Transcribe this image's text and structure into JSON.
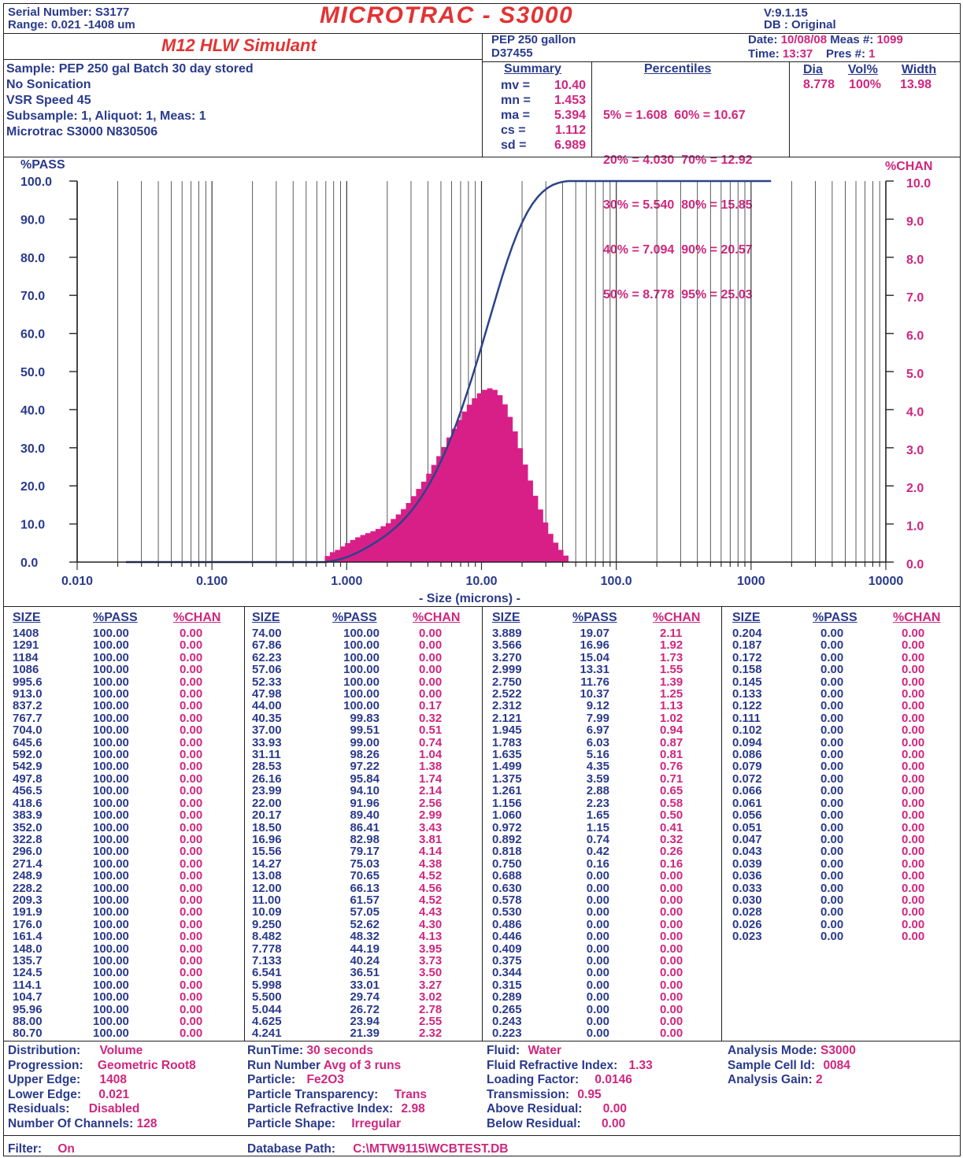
{
  "header": {
    "serial_label": "Serial Number:",
    "serial": "S3177",
    "range_label": "Range:",
    "range": "0.021 -1408  um",
    "title": "MICROTRAC - S3000",
    "version_label": "V:",
    "version": "9.1.15",
    "db_label": "DB :",
    "db": "Original",
    "sample_title": "M12 HLW Simulant",
    "id_line1": "PEP 250 gallon",
    "id_line2": "D37455",
    "date_label": "Date:",
    "date": "10/08/08",
    "meas_label": "Meas #:",
    "meas": "1099",
    "time_label": "Time:",
    "time": "13:37",
    "pres_label": "Pres #:",
    "pres": "1"
  },
  "sample_info": [
    "Sample: PEP 250 gal Batch 30 day stored",
    "No Sonication",
    "VSR Speed 45",
    "Subsample: 1, Aliquot: 1, Meas: 1",
    "Microtrac S3000 N830506"
  ],
  "summary": {
    "title": "Summary",
    "rows": [
      {
        "k": "mv  =",
        "v": "10.40"
      },
      {
        "k": "mn  =",
        "v": "1.453"
      },
      {
        "k": "ma  =",
        "v": "5.394"
      },
      {
        "k": "cs   =",
        "v": "1.112"
      },
      {
        "k": "sd   =",
        "v": "6.989"
      }
    ]
  },
  "percentiles": {
    "title": "Percentiles",
    "rows": [
      "5% = 1.608  60% = 10.67",
      "20% = 4.030  70% = 12.92",
      "30% = 5.540  80% = 15.85",
      "40% = 7.094  90% = 20.57",
      "50% = 8.778  95% = 25.03"
    ]
  },
  "peaks": {
    "headers": [
      "Dia",
      "Vol%",
      "Width"
    ],
    "values": [
      "8.778",
      "100%",
      "13.98"
    ]
  },
  "chart_data": {
    "type": "bar",
    "ylabel_left": "%PASS",
    "ylabel_right": "%CHAN",
    "xlabel": "- Size (microns) -",
    "x_scale": "log",
    "xlim": [
      0.01,
      10000
    ],
    "ylim_left": [
      0,
      100
    ],
    "ylim_right": [
      0,
      10
    ],
    "x_ticks": [
      "0.010",
      "0.100",
      "1.000",
      "10.00",
      "100.0",
      "1000",
      "10000"
    ],
    "y_ticks_left": [
      "0.0",
      "10.0",
      "20.0",
      "30.0",
      "40.0",
      "50.0",
      "60.0",
      "70.0",
      "80.0",
      "90.0",
      "100.0"
    ],
    "y_ticks_right": [
      "0.0",
      "1.0",
      "2.0",
      "3.0",
      "4.0",
      "5.0",
      "6.0",
      "7.0",
      "8.0",
      "9.0",
      "10.0"
    ],
    "grid": true,
    "size": [
      1408,
      1291,
      1184,
      1086,
      995.6,
      913.0,
      837.2,
      767.7,
      704.0,
      645.6,
      592.0,
      542.9,
      497.8,
      456.5,
      418.6,
      383.9,
      352.0,
      322.8,
      296.0,
      271.4,
      248.9,
      228.2,
      209.3,
      191.9,
      176.0,
      161.4,
      148.0,
      135.7,
      124.5,
      114.1,
      104.7,
      95.96,
      88.0,
      80.7,
      74.0,
      67.86,
      62.23,
      57.06,
      52.33,
      47.98,
      44.0,
      40.35,
      37.0,
      33.93,
      31.11,
      28.53,
      26.16,
      23.99,
      22.0,
      20.17,
      18.5,
      16.96,
      15.56,
      14.27,
      13.08,
      12.0,
      11.0,
      10.09,
      9.25,
      8.482,
      7.778,
      7.133,
      6.541,
      5.998,
      5.5,
      5.044,
      4.625,
      4.241,
      3.889,
      3.566,
      3.27,
      2.999,
      2.75,
      2.522,
      2.312,
      2.121,
      1.945,
      1.783,
      1.635,
      1.499,
      1.375,
      1.261,
      1.156,
      1.06,
      0.972,
      0.892,
      0.818,
      0.75,
      0.688,
      0.63,
      0.578,
      0.53,
      0.486,
      0.446,
      0.409,
      0.375,
      0.344,
      0.315,
      0.289,
      0.265,
      0.243,
      0.223,
      0.204,
      0.187,
      0.172,
      0.158,
      0.145,
      0.133,
      0.122,
      0.111,
      0.102,
      0.094,
      0.086,
      0.079,
      0.072,
      0.066,
      0.061,
      0.056,
      0.051,
      0.047,
      0.043,
      0.039,
      0.036,
      0.033,
      0.03,
      0.028,
      0.026,
      0.023
    ],
    "pass": [
      100,
      100,
      100,
      100,
      100,
      100,
      100,
      100,
      100,
      100,
      100,
      100,
      100,
      100,
      100,
      100,
      100,
      100,
      100,
      100,
      100,
      100,
      100,
      100,
      100,
      100,
      100,
      100,
      100,
      100,
      100,
      100,
      100,
      100,
      100,
      100,
      100,
      100,
      100,
      100,
      100,
      99.83,
      99.51,
      99.0,
      98.26,
      97.22,
      95.84,
      94.1,
      91.96,
      89.4,
      86.41,
      82.98,
      79.17,
      75.03,
      70.65,
      66.13,
      61.57,
      57.05,
      52.62,
      48.32,
      44.19,
      40.24,
      36.51,
      33.01,
      29.74,
      26.72,
      23.94,
      21.39,
      19.07,
      16.96,
      15.04,
      13.31,
      11.76,
      10.37,
      9.12,
      7.99,
      6.97,
      6.03,
      5.16,
      4.35,
      3.59,
      2.88,
      2.23,
      1.65,
      1.15,
      0.74,
      0.42,
      0.16,
      0,
      0,
      0,
      0,
      0,
      0,
      0,
      0,
      0,
      0,
      0,
      0,
      0,
      0,
      0,
      0,
      0,
      0,
      0,
      0,
      0,
      0,
      0,
      0,
      0,
      0,
      0,
      0,
      0,
      0,
      0,
      0,
      0,
      0,
      0,
      0,
      0,
      0,
      0,
      0
    ],
    "chan": [
      0,
      0,
      0,
      0,
      0,
      0,
      0,
      0,
      0,
      0,
      0,
      0,
      0,
      0,
      0,
      0,
      0,
      0,
      0,
      0,
      0,
      0,
      0,
      0,
      0,
      0,
      0,
      0,
      0,
      0,
      0,
      0,
      0,
      0,
      0,
      0,
      0,
      0,
      0,
      0,
      0.17,
      0.32,
      0.51,
      0.74,
      1.04,
      1.38,
      1.74,
      2.14,
      2.56,
      2.99,
      3.43,
      3.81,
      4.14,
      4.38,
      4.52,
      4.56,
      4.52,
      4.43,
      4.3,
      4.13,
      3.95,
      3.73,
      3.5,
      3.27,
      3.02,
      2.78,
      2.55,
      2.32,
      2.11,
      1.92,
      1.73,
      1.55,
      1.39,
      1.25,
      1.13,
      1.02,
      0.94,
      0.87,
      0.81,
      0.76,
      0.71,
      0.65,
      0.58,
      0.5,
      0.41,
      0.32,
      0.26,
      0.16,
      0,
      0,
      0,
      0,
      0,
      0,
      0,
      0,
      0,
      0,
      0,
      0,
      0,
      0,
      0,
      0,
      0,
      0,
      0,
      0,
      0,
      0,
      0,
      0,
      0,
      0,
      0,
      0,
      0,
      0,
      0,
      0,
      0,
      0,
      0,
      0,
      0,
      0,
      0,
      0
    ],
    "colors": {
      "pass_line": "#2c4488",
      "chan_bars": "#d81f88"
    }
  },
  "table": {
    "headers": [
      "SIZE",
      "%PASS",
      "%CHAN"
    ],
    "col1": {
      "size": "1408\n1291\n1184\n1086\n995.6\n913.0\n837.2\n767.7\n704.0\n645.6\n592.0\n542.9\n497.8\n456.5\n418.6\n383.9\n352.0\n322.8\n296.0\n271.4\n248.9\n228.2\n209.3\n191.9\n176.0\n161.4\n148.0\n135.7\n124.5\n114.1\n104.7\n95.96\n88.00\n80.70",
      "pass": "100.00\n100.00\n100.00\n100.00\n100.00\n100.00\n100.00\n100.00\n100.00\n100.00\n100.00\n100.00\n100.00\n100.00\n100.00\n100.00\n100.00\n100.00\n100.00\n100.00\n100.00\n100.00\n100.00\n100.00\n100.00\n100.00\n100.00\n100.00\n100.00\n100.00\n100.00\n100.00\n100.00\n100.00",
      "chan": "0.00\n0.00\n0.00\n0.00\n0.00\n0.00\n0.00\n0.00\n0.00\n0.00\n0.00\n0.00\n0.00\n0.00\n0.00\n0.00\n0.00\n0.00\n0.00\n0.00\n0.00\n0.00\n0.00\n0.00\n0.00\n0.00\n0.00\n0.00\n0.00\n0.00\n0.00\n0.00\n0.00\n0.00"
    },
    "col2": {
      "size": "74.00\n67.86\n62.23\n57.06\n52.33\n47.98\n44.00\n40.35\n37.00\n33.93\n31.11\n28.53\n26.16\n23.99\n22.00\n20.17\n18.50\n16.96\n15.56\n14.27\n13.08\n12.00\n11.00\n10.09\n9.250\n8.482\n7.778\n7.133\n6.541\n5.998\n5.500\n5.044\n4.625\n4.241",
      "pass": "100.00\n100.00\n100.00\n100.00\n100.00\n100.00\n100.00\n99.83\n99.51\n99.00\n98.26\n97.22\n95.84\n94.10\n91.96\n89.40\n86.41\n82.98\n79.17\n75.03\n70.65\n66.13\n61.57\n57.05\n52.62\n48.32\n44.19\n40.24\n36.51\n33.01\n29.74\n26.72\n23.94\n21.39",
      "chan": "0.00\n0.00\n0.00\n0.00\n0.00\n0.00\n0.17\n0.32\n0.51\n0.74\n1.04\n1.38\n1.74\n2.14\n2.56\n2.99\n3.43\n3.81\n4.14\n4.38\n4.52\n4.56\n4.52\n4.43\n4.30\n4.13\n3.95\n3.73\n3.50\n3.27\n3.02\n2.78\n2.55\n2.32"
    },
    "col3": {
      "size": "3.889\n3.566\n3.270\n2.999\n2.750\n2.522\n2.312\n2.121\n1.945\n1.783\n1.635\n1.499\n1.375\n1.261\n1.156\n1.060\n0.972\n0.892\n0.818\n0.750\n0.688\n0.630\n0.578\n0.530\n0.486\n0.446\n0.409\n0.375\n0.344\n0.315\n0.289\n0.265\n0.243\n0.223",
      "pass": "19.07\n16.96\n15.04\n13.31\n11.76\n10.37\n9.12\n7.99\n6.97\n6.03\n5.16\n4.35\n3.59\n2.88\n2.23\n1.65\n1.15\n0.74\n0.42\n0.16\n0.00\n0.00\n0.00\n0.00\n0.00\n0.00\n0.00\n0.00\n0.00\n0.00\n0.00\n0.00\n0.00\n0.00",
      "chan": "2.11\n1.92\n1.73\n1.55\n1.39\n1.25\n1.13\n1.02\n0.94\n0.87\n0.81\n0.76\n0.71\n0.65\n0.58\n0.50\n0.41\n0.32\n0.26\n0.16\n0.00\n0.00\n0.00\n0.00\n0.00\n0.00\n0.00\n0.00\n0.00\n0.00\n0.00\n0.00\n0.00\n0.00"
    },
    "col4": {
      "size": "0.204\n0.187\n0.172\n0.158\n0.145\n0.133\n0.122\n0.111\n0.102\n0.094\n0.086\n0.079\n0.072\n0.066\n0.061\n0.056\n0.051\n0.047\n0.043\n0.039\n0.036\n0.033\n0.030\n0.028\n0.026\n0.023",
      "pass": "0.00\n0.00\n0.00\n0.00\n0.00\n0.00\n0.00\n0.00\n0.00\n0.00\n0.00\n0.00\n0.00\n0.00\n0.00\n0.00\n0.00\n0.00\n0.00\n0.00\n0.00\n0.00\n0.00\n0.00\n0.00\n0.00",
      "chan": "0.00\n0.00\n0.00\n0.00\n0.00\n0.00\n0.00\n0.00\n0.00\n0.00\n0.00\n0.00\n0.00\n0.00\n0.00\n0.00\n0.00\n0.00\n0.00\n0.00\n0.00\n0.00\n0.00\n0.00\n0.00\n0.00"
    }
  },
  "footer": {
    "c1": [
      {
        "k": "Distribution:",
        "v": "Volume"
      },
      {
        "k": "Progression:",
        "v": "Geometric Root8"
      },
      {
        "k": "Upper Edge:",
        "v": "1408"
      },
      {
        "k": "Lower Edge:",
        "v": "0.021"
      },
      {
        "k": "Residuals:",
        "v": "Disabled"
      },
      {
        "k": "Number Of Channels:",
        "v": "128"
      }
    ],
    "c2": [
      {
        "k": "RunTime:",
        "v": "30  seconds"
      },
      {
        "k": "Run Number",
        "v": "Avg of  3  runs"
      },
      {
        "k": "Particle:",
        "v": "Fe2O3"
      },
      {
        "k": "Particle Transparency:",
        "v": "Trans"
      },
      {
        "k": "Particle Refractive Index:",
        "v": "2.98"
      },
      {
        "k": "Particle Shape:",
        "v": "Irregular"
      }
    ],
    "c3": [
      {
        "k": "Fluid:",
        "v": "Water"
      },
      {
        "k": "Fluid Refractive Index:",
        "v": "1.33"
      },
      {
        "k": "Loading Factor:",
        "v": "0.0146"
      },
      {
        "k": "Transmission:",
        "v": "0.95"
      },
      {
        "k": "Above Residual:",
        "v": "0.00"
      },
      {
        "k": "Below Residual:",
        "v": "0.00"
      }
    ],
    "c4": [
      {
        "k": "Analysis Mode:",
        "v": "S3000"
      },
      {
        "k": "Sample Cell Id:",
        "v": "0084"
      },
      {
        "k": "Analysis Gain:",
        "v": "2"
      }
    ],
    "filter_label": "Filter:",
    "filter": "On",
    "dbpath_label": "Database Path:",
    "dbpath": "C:\\MTW9115\\WCBTEST.DB"
  }
}
